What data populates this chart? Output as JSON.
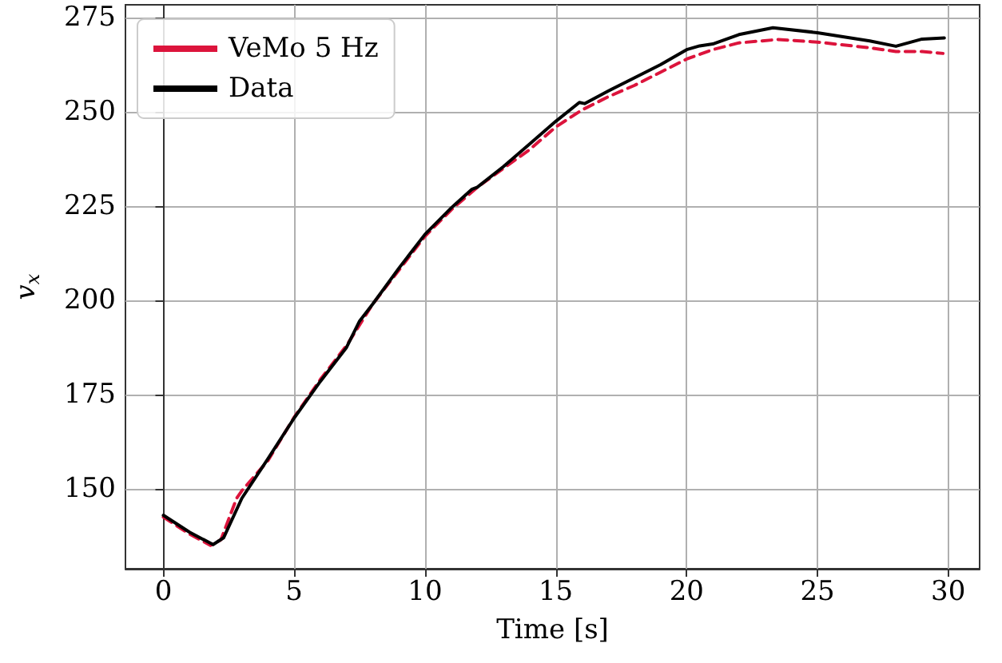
{
  "chart_data": {
    "type": "line",
    "xlabel": "Time [s]",
    "ylabel": "v$_{x}$",
    "xlim": [
      -1.45,
      31.2
    ],
    "xticks": [
      0,
      5,
      10,
      15,
      20,
      25,
      30
    ],
    "ylim": [
      128.8,
      278.4
    ],
    "yticks": [
      150,
      175,
      200,
      225,
      250,
      275
    ],
    "grid": true,
    "legend": "top left",
    "marker": "none",
    "series": [
      {
        "name": "VeMo 5 Hz",
        "color": "#dc143c",
        "line_style": "dashed",
        "x": [
          0,
          1,
          1.8,
          2.2,
          2.8,
          3,
          4,
          5,
          6,
          7,
          8,
          9,
          10,
          11,
          12,
          13,
          14,
          15,
          16,
          17,
          18,
          19,
          20,
          21,
          22,
          23.5,
          25,
          27,
          28,
          29,
          29.8
        ],
        "values": [
          142.5,
          138,
          135,
          136.5,
          147.5,
          149.5,
          157.5,
          169,
          179,
          188,
          199,
          208,
          217,
          224,
          230,
          235,
          240,
          246,
          250.5,
          254,
          257,
          260.5,
          264,
          266.5,
          268.3,
          269.2,
          268.5,
          267,
          266,
          266,
          265.5
        ]
      },
      {
        "name": "Data",
        "color": "#000000",
        "line_style": "solid",
        "x": [
          0,
          1,
          1.9,
          2.3,
          3,
          4,
          5,
          6,
          7,
          7.5,
          8,
          9,
          10,
          11,
          11.8,
          12,
          13,
          14,
          15,
          15.9,
          16.1,
          17,
          18,
          19,
          20,
          20.5,
          21,
          22,
          23.3,
          25,
          27,
          28,
          29,
          29.85
        ],
        "values": [
          143,
          138.5,
          135.2,
          137,
          147.5,
          158,
          168.8,
          178.5,
          187.5,
          194.5,
          199,
          208.5,
          217.5,
          224.5,
          229.5,
          230,
          235.5,
          241.5,
          247.5,
          252.5,
          252.2,
          255.5,
          259,
          262.5,
          266.5,
          267.5,
          268,
          270.5,
          272.3,
          271,
          268.8,
          267.4,
          269.3,
          269.6
        ]
      }
    ]
  }
}
